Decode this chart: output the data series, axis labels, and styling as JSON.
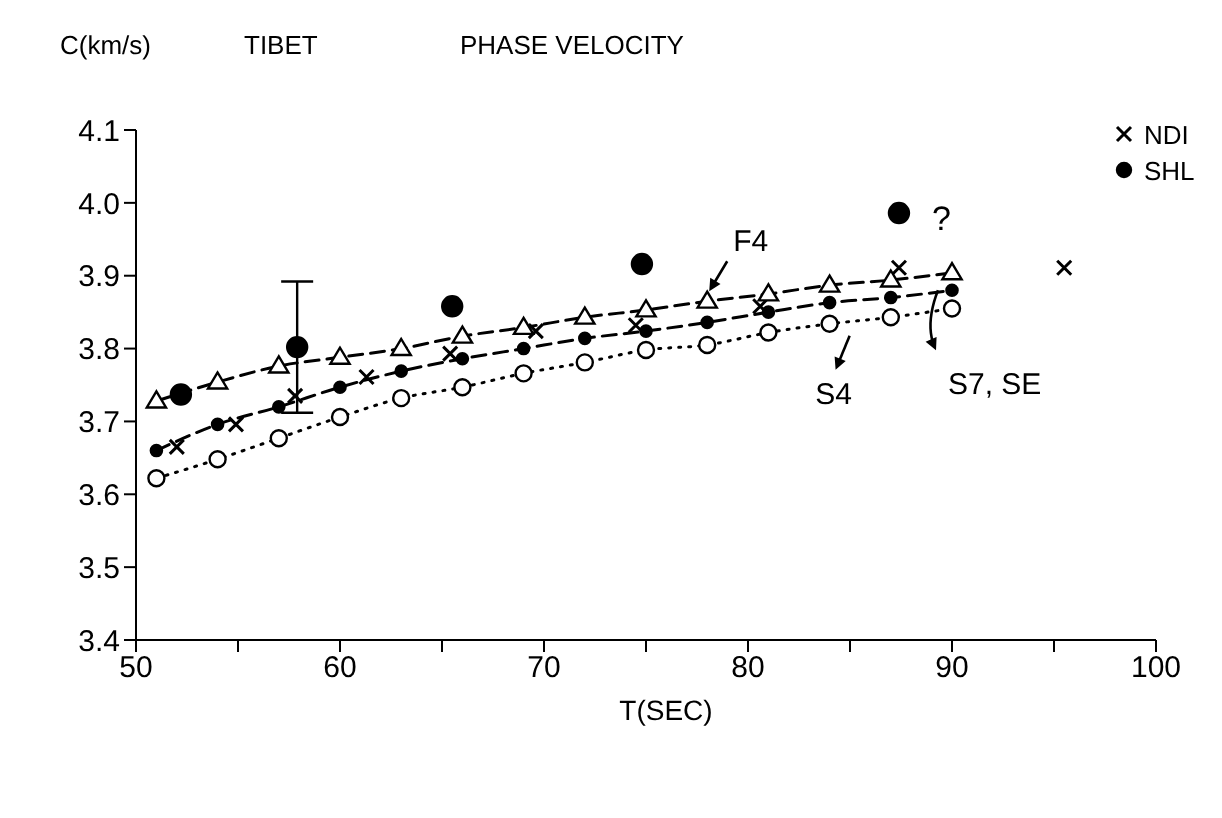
{
  "chart_data": {
    "type": "line",
    "title": "TIBET",
    "subtitle": "PHASE VELOCITY",
    "ylabel": "C(km/s)",
    "xlabel": "T(SEC)",
    "xlim": [
      50,
      100
    ],
    "xticks": [
      50,
      {
        "value": 55,
        "label": null
      },
      60,
      {
        "value": 65,
        "label": null
      },
      70,
      {
        "value": 75,
        "label": null
      },
      80,
      {
        "value": 85,
        "label": null
      },
      90,
      {
        "value": 95,
        "label": null
      },
      100
    ],
    "ylim": [
      3.4,
      4.1
    ],
    "yticks": [
      3.4,
      3.5,
      3.6,
      3.7,
      3.8,
      3.9,
      {
        "value": 4,
        "label": "4.0"
      },
      4.1
    ],
    "grid": false,
    "legend": "top right",
    "series": [
      {
        "color": "#000000",
        "marker": "triangle",
        "line_style": "dashed",
        "x": [
          51,
          54,
          57,
          60,
          63,
          66,
          69,
          72,
          75,
          78,
          81,
          84,
          87,
          90
        ],
        "values": [
          3.728,
          3.754,
          3.776,
          3.788,
          3.8,
          3.817,
          3.829,
          3.843,
          3.853,
          3.865,
          3.875,
          3.887,
          3.894,
          3.904
        ]
      },
      {
        "color": "#000000",
        "marker": "circle",
        "line_style": "dashed",
        "x": [
          51,
          54,
          57,
          60,
          63,
          66,
          69,
          72,
          75,
          78,
          81,
          84,
          87,
          90
        ],
        "values": [
          3.66,
          3.696,
          3.72,
          3.747,
          3.769,
          3.786,
          3.8,
          3.814,
          3.824,
          3.836,
          3.85,
          3.863,
          3.87,
          3.88
        ]
      },
      {
        "color": "#000000",
        "marker": "circle",
        "line_style": "dotted",
        "x": [
          51,
          54,
          57,
          60,
          63,
          66,
          69,
          72,
          75,
          78,
          81,
          84,
          87,
          90
        ],
        "values": [
          3.622,
          3.648,
          3.677,
          3.706,
          3.732,
          3.747,
          3.766,
          3.781,
          3.798,
          3.805,
          3.822,
          3.834,
          3.843,
          3.855
        ]
      },
      {
        "name": "NDI",
        "type": "scatter",
        "color": "#000000",
        "marker": "cross",
        "x": [
          52,
          54.9,
          57.8,
          61.3,
          65.4,
          69.6,
          74.5,
          80.6,
          87.4,
          95.5
        ],
        "values": [
          3.665,
          3.696,
          3.735,
          3.761,
          3.793,
          3.824,
          3.832,
          3.858,
          3.911,
          3.911
        ]
      },
      {
        "name": "SHL",
        "type": "scatter",
        "color": "#000000",
        "marker": "circle",
        "x": [
          52.2,
          57.9,
          65.5,
          74.8,
          87.4
        ],
        "values": [
          3.737,
          3.802,
          3.858,
          3.916,
          3.986
        ],
        "errors": [
          null,
          0.09,
          null,
          null,
          null
        ]
      }
    ],
    "annotations": [
      {
        "text": "F4",
        "x": 78,
        "y": 3.865
      },
      {
        "text": "S7, SE",
        "x": 90,
        "y": 3.88
      },
      {
        "text": "S4",
        "x": 84,
        "y": 3.834
      },
      "?"
    ]
  }
}
